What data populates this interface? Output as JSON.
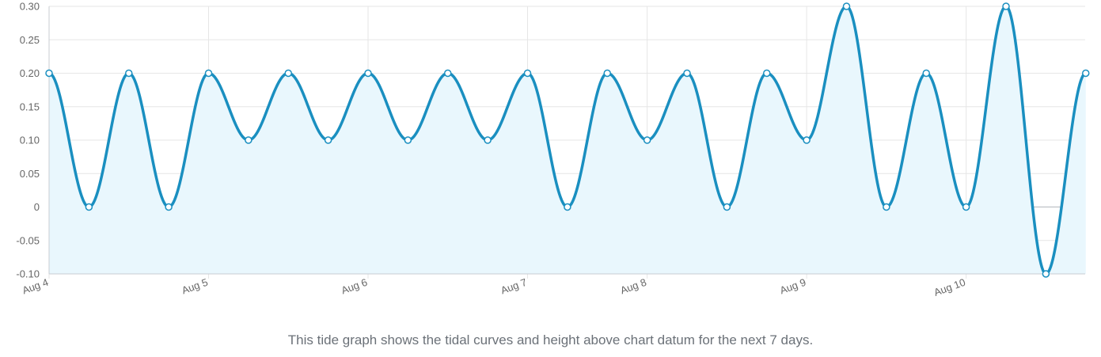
{
  "chart_data": {
    "type": "area",
    "title": "",
    "xlabel": "",
    "ylabel": "",
    "ylim": [
      -0.1,
      0.3
    ],
    "y_ticks": [
      "0.30",
      "0.25",
      "0.20",
      "0.15",
      "0.10",
      "0.05",
      "0",
      "-0.05",
      "-0.10"
    ],
    "y_tick_values": [
      0.3,
      0.25,
      0.2,
      0.15,
      0.1,
      0.05,
      0,
      -0.05,
      -0.1
    ],
    "x_ticks": [
      "Aug 4",
      "Aug 5",
      "Aug 6",
      "Aug 7",
      "Aug 8",
      "Aug 9",
      "Aug 10"
    ],
    "x_ticks_days": [
      0,
      1,
      2,
      3,
      3.75,
      4.75,
      5.75
    ],
    "grid": true,
    "series": [
      {
        "x_days": [
          0,
          0.25,
          0.75,
          1.0,
          1.25,
          1.5,
          1.75,
          2.0,
          2.25,
          2.5,
          2.75,
          3.0,
          3.25,
          3.5,
          3.75,
          4.0,
          4.25,
          4.5,
          4.75,
          5.0,
          5.25,
          5.5,
          5.75,
          6.0,
          6.25,
          6.5
        ],
        "values": [
          0.2,
          0,
          0,
          0.2,
          0.1,
          0.2,
          0.1,
          0.2,
          0.1,
          0.2,
          0.1,
          0.2,
          0,
          0.2,
          0.1,
          0.2,
          0,
          0.2,
          0.1,
          0.3,
          0,
          0.2,
          0,
          0.3,
          -0.1,
          0.2
        ],
        "extra_points": [
          {
            "x_day": 0.5,
            "value": 0.2
          }
        ]
      }
    ],
    "colors": {
      "line": "#1a8fc0",
      "fill": "#e9f7fd",
      "grid": "#e6e6e6",
      "zero_line": "#b3b8bd",
      "axis": "#c8cdd2"
    }
  },
  "caption": "This tide graph shows the tidal curves and height above chart datum for the next 7 days."
}
